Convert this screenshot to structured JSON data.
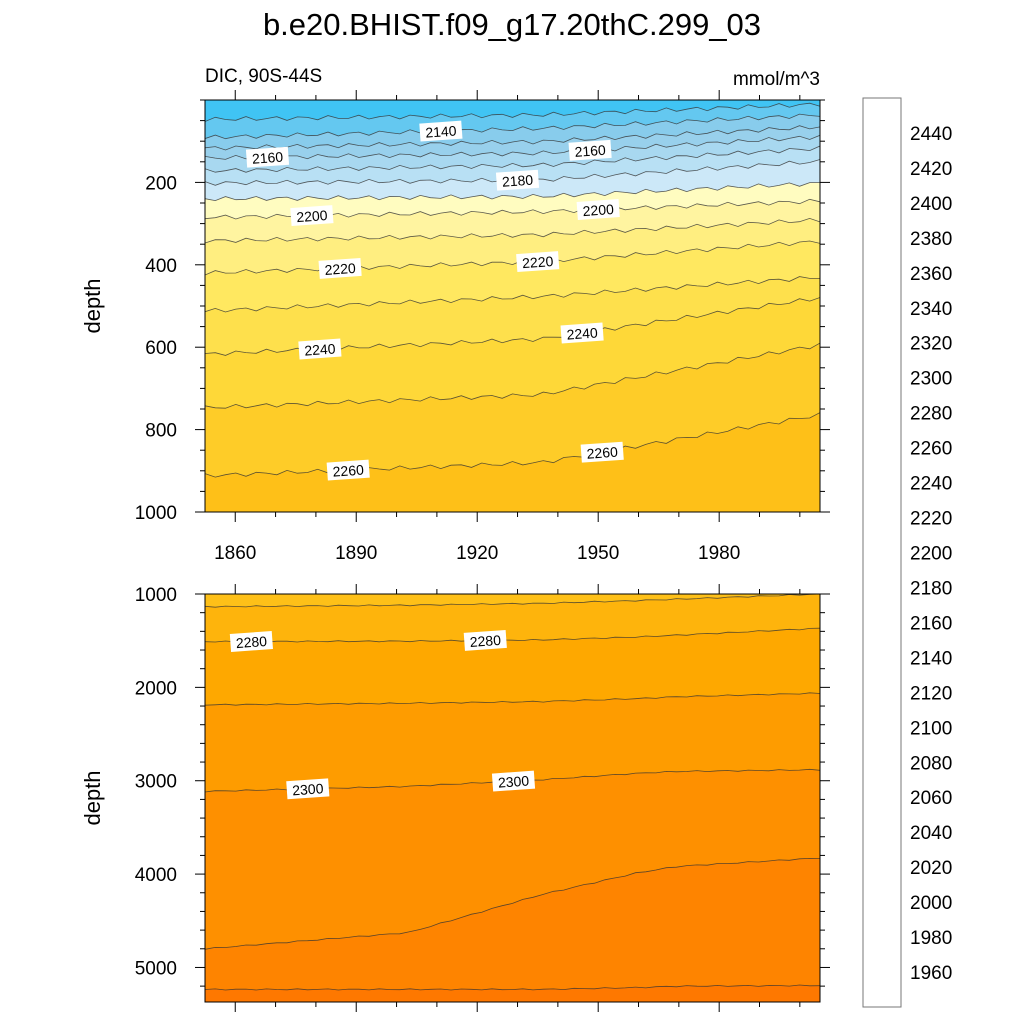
{
  "title": "b.e20.BHIST.f09_g17.20thC.299_03",
  "subtitle_left": "DIC, 90S-44S",
  "subtitle_right": "mmol/m^3",
  "chart_data": [
    {
      "type": "contour",
      "panel": "upper",
      "ylabel": "depth",
      "xlim": [
        1852.5,
        2005
      ],
      "ylim": [
        0,
        1000
      ],
      "y_reversed": true,
      "xticks": [
        1860,
        1890,
        1920,
        1950,
        1980
      ],
      "xtick_labels": [
        "1860",
        "1890",
        "1920",
        "1950",
        "1980"
      ],
      "yticks": [
        200,
        400,
        600,
        800,
        1000
      ],
      "ytick_labels": [
        "200",
        "400",
        "600",
        "800",
        "1000"
      ],
      "contour_years": [
        1852.5,
        1936,
        2005
      ],
      "contours": [
        {
          "level": 2130,
          "depth": [
            47,
            36,
            10
          ]
        },
        {
          "level": 2140,
          "depth": [
            91,
            69,
            36
          ]
        },
        {
          "level": 2150,
          "depth": [
            117,
            101,
            65
          ]
        },
        {
          "level": 2160,
          "depth": [
            141,
            129,
            89
          ]
        },
        {
          "level": 2170,
          "depth": [
            172,
            158,
            117
          ]
        },
        {
          "level": 2180,
          "depth": [
            202,
            194,
            149
          ]
        },
        {
          "level": 2190,
          "depth": [
            240,
            234,
            202
          ]
        },
        {
          "level": 2200,
          "depth": [
            285,
            271,
            245
          ]
        },
        {
          "level": 2210,
          "depth": [
            342,
            327,
            291
          ]
        },
        {
          "level": 2220,
          "depth": [
            420,
            392,
            343
          ]
        },
        {
          "level": 2230,
          "depth": [
            512,
            477,
            430
          ]
        },
        {
          "level": 2240,
          "depth": [
            617,
            580,
            480
          ]
        },
        {
          "level": 2250,
          "depth": [
            747,
            715,
            594
          ]
        },
        {
          "level": 2260,
          "depth": [
            912,
            880,
            764
          ]
        }
      ],
      "contour_labels": [
        {
          "text": "2140",
          "level": 2140,
          "year": 1911
        },
        {
          "text": "2160",
          "level": 2160,
          "year": 1868
        },
        {
          "text": "2160",
          "level": 2160,
          "year": 1948
        },
        {
          "text": "2180",
          "level": 2180,
          "year": 1930
        },
        {
          "text": "2200",
          "level": 2200,
          "year": 1879
        },
        {
          "text": "2200",
          "level": 2200,
          "year": 1950
        },
        {
          "text": "2220",
          "level": 2220,
          "year": 1886
        },
        {
          "text": "2220",
          "level": 2220,
          "year": 1935
        },
        {
          "text": "2240",
          "level": 2240,
          "year": 1881
        },
        {
          "text": "2240",
          "level": 2240,
          "year": 1946
        },
        {
          "text": "2260",
          "level": 2260,
          "year": 1888
        },
        {
          "text": "2260",
          "level": 2260,
          "year": 1951
        }
      ]
    },
    {
      "type": "contour",
      "panel": "lower",
      "ylabel": "depth",
      "xlim": [
        1852.5,
        2005
      ],
      "ylim": [
        1000,
        5370
      ],
      "y_reversed": true,
      "xticks": [
        1860,
        1890,
        1920,
        1950,
        1980
      ],
      "yticks": [
        1000,
        2000,
        3000,
        4000,
        5000
      ],
      "ytick_labels": [
        "1000",
        "2000",
        "3000",
        "4000",
        "5000"
      ],
      "contour_years": [
        1852.5,
        1903,
        1936,
        1960,
        1970,
        2005
      ],
      "contours": [
        {
          "level": 2270,
          "depth": [
            1136,
            1120,
            1100,
            1070,
            1055,
            1000
          ]
        },
        {
          "level": 2280,
          "depth": [
            1510,
            1505,
            1492,
            1460,
            1440,
            1367
          ]
        },
        {
          "level": 2290,
          "depth": [
            2187,
            2170,
            2152,
            2120,
            2100,
            2062
          ]
        },
        {
          "level": 2300,
          "depth": [
            3114,
            3060,
            2989,
            2920,
            2900,
            2882
          ]
        },
        {
          "level": 2310,
          "depth": [
            4800,
            4626,
            4219,
            3984,
            3916,
            3827
          ]
        },
        {
          "level": 2320,
          "depth": [
            5235,
            5235,
            5235,
            5215,
            5200,
            5193
          ]
        }
      ],
      "contour_labels": [
        {
          "text": "2280",
          "level": 2280,
          "year": 1864
        },
        {
          "text": "2280",
          "level": 2280,
          "year": 1922
        },
        {
          "text": "2300",
          "level": 2300,
          "year": 1878
        },
        {
          "text": "2300",
          "level": 2300,
          "year": 1929
        }
      ]
    }
  ],
  "colorbar": {
    "levels_min": 1950,
    "levels_max": 2450,
    "level_step": 10,
    "labels": [
      "1960",
      "1980",
      "2000",
      "2020",
      "2040",
      "2060",
      "2080",
      "2100",
      "2120",
      "2140",
      "2160",
      "2180",
      "2200",
      "2220",
      "2240",
      "2260",
      "2280",
      "2300",
      "2320",
      "2340",
      "2360",
      "2380",
      "2400",
      "2420",
      "2440"
    ],
    "colors": [
      "#8020e8",
      "#6a18f0",
      "#4c14f0",
      "#2a10f8",
      "#0000fa",
      "#0a14f8",
      "#1a2ef0",
      "#2a40e8",
      "#3a58e0",
      "#3a68e0",
      "#3070e8",
      "#2880f0",
      "#1e88f8",
      "#1090fc",
      "#0aa0fc",
      "#00b0fc",
      "#00c0fc",
      "#20c0fc",
      "#40c4f4",
      "#64c8f0",
      "#88ccec",
      "#98d0ec",
      "#a8d8f0",
      "#b8e0f4",
      "#cce8f8",
      "#fffcc0",
      "#fff4a0",
      "#ffee80",
      "#ffe860",
      "#fee04c",
      "#fed838",
      "#fecc28",
      "#fec018",
      "#feb40c",
      "#fea800",
      "#fe9c00",
      "#fe9000",
      "#fe8400",
      "#fe7800",
      "#fe6800",
      "#fe5800",
      "#fe4400",
      "#fe2800",
      "#fe1000",
      "#f80000",
      "#e80000",
      "#d80000",
      "#c80000",
      "#d42a2a",
      "#e05050",
      "#ea8080",
      "#fcb4b4"
    ]
  }
}
